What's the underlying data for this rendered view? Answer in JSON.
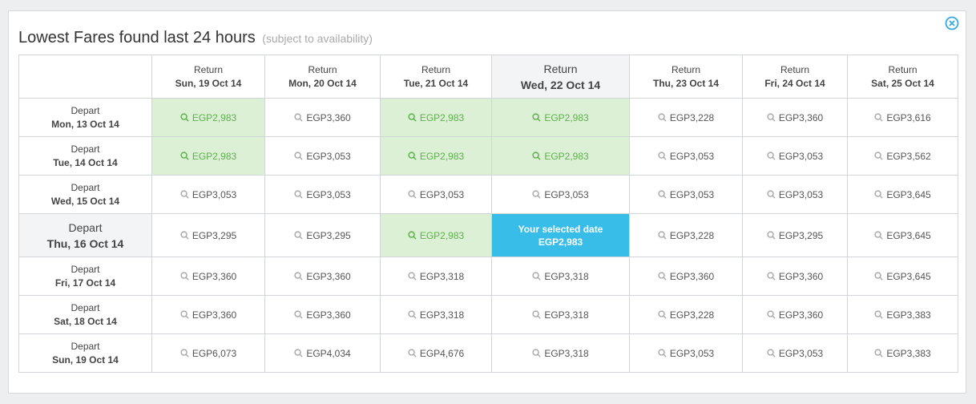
{
  "dialog": {
    "title": "Lowest Fares found last 24 hours",
    "subtitle": "(subject to availability)",
    "selected_label": "Your selected date"
  },
  "header_label": "Return",
  "row_label": "Depart",
  "return_dates": [
    "Sun, 19 Oct 14",
    "Mon, 20 Oct 14",
    "Tue, 21 Oct 14",
    "Wed, 22 Oct 14",
    "Thu, 23 Oct 14",
    "Fri, 24 Oct 14",
    "Sat, 25 Oct 14"
  ],
  "selected_return_index": 3,
  "selected_depart_index": 3,
  "colors": {
    "lowest": "#dcf0d6",
    "lowest_text": "#5fb04c",
    "selected": "#37bde8"
  },
  "rows": [
    {
      "depart": "Mon, 13 Oct 14",
      "fares": [
        "EGP2,983",
        "EGP3,360",
        "EGP2,983",
        "EGP2,983",
        "EGP3,228",
        "EGP3,360",
        "EGP3,616"
      ],
      "lowest": [
        true,
        false,
        true,
        true,
        false,
        false,
        false
      ]
    },
    {
      "depart": "Tue, 14 Oct 14",
      "fares": [
        "EGP2,983",
        "EGP3,053",
        "EGP2,983",
        "EGP2,983",
        "EGP3,053",
        "EGP3,053",
        "EGP3,562"
      ],
      "lowest": [
        true,
        false,
        true,
        true,
        false,
        false,
        false
      ]
    },
    {
      "depart": "Wed, 15 Oct 14",
      "fares": [
        "EGP3,053",
        "EGP3,053",
        "EGP3,053",
        "EGP3,053",
        "EGP3,053",
        "EGP3,053",
        "EGP3,645"
      ],
      "lowest": [
        false,
        false,
        false,
        false,
        false,
        false,
        false
      ]
    },
    {
      "depart": "Thu, 16 Oct 14",
      "fares": [
        "EGP3,295",
        "EGP3,295",
        "EGP2,983",
        "EGP2,983",
        "EGP3,228",
        "EGP3,295",
        "EGP3,645"
      ],
      "lowest": [
        false,
        false,
        true,
        false,
        false,
        false,
        false
      ]
    },
    {
      "depart": "Fri, 17 Oct 14",
      "fares": [
        "EGP3,360",
        "EGP3,360",
        "EGP3,318",
        "EGP3,318",
        "EGP3,360",
        "EGP3,360",
        "EGP3,645"
      ],
      "lowest": [
        false,
        false,
        false,
        false,
        false,
        false,
        false
      ]
    },
    {
      "depart": "Sat, 18 Oct 14",
      "fares": [
        "EGP3,360",
        "EGP3,360",
        "EGP3,318",
        "EGP3,318",
        "EGP3,228",
        "EGP3,360",
        "EGP3,383"
      ],
      "lowest": [
        false,
        false,
        false,
        false,
        false,
        false,
        false
      ]
    },
    {
      "depart": "Sun, 19 Oct 14",
      "fares": [
        "EGP6,073",
        "EGP4,034",
        "EGP4,676",
        "EGP3,318",
        "EGP3,053",
        "EGP3,053",
        "EGP3,383"
      ],
      "lowest": [
        false,
        false,
        false,
        false,
        false,
        false,
        false
      ]
    }
  ]
}
